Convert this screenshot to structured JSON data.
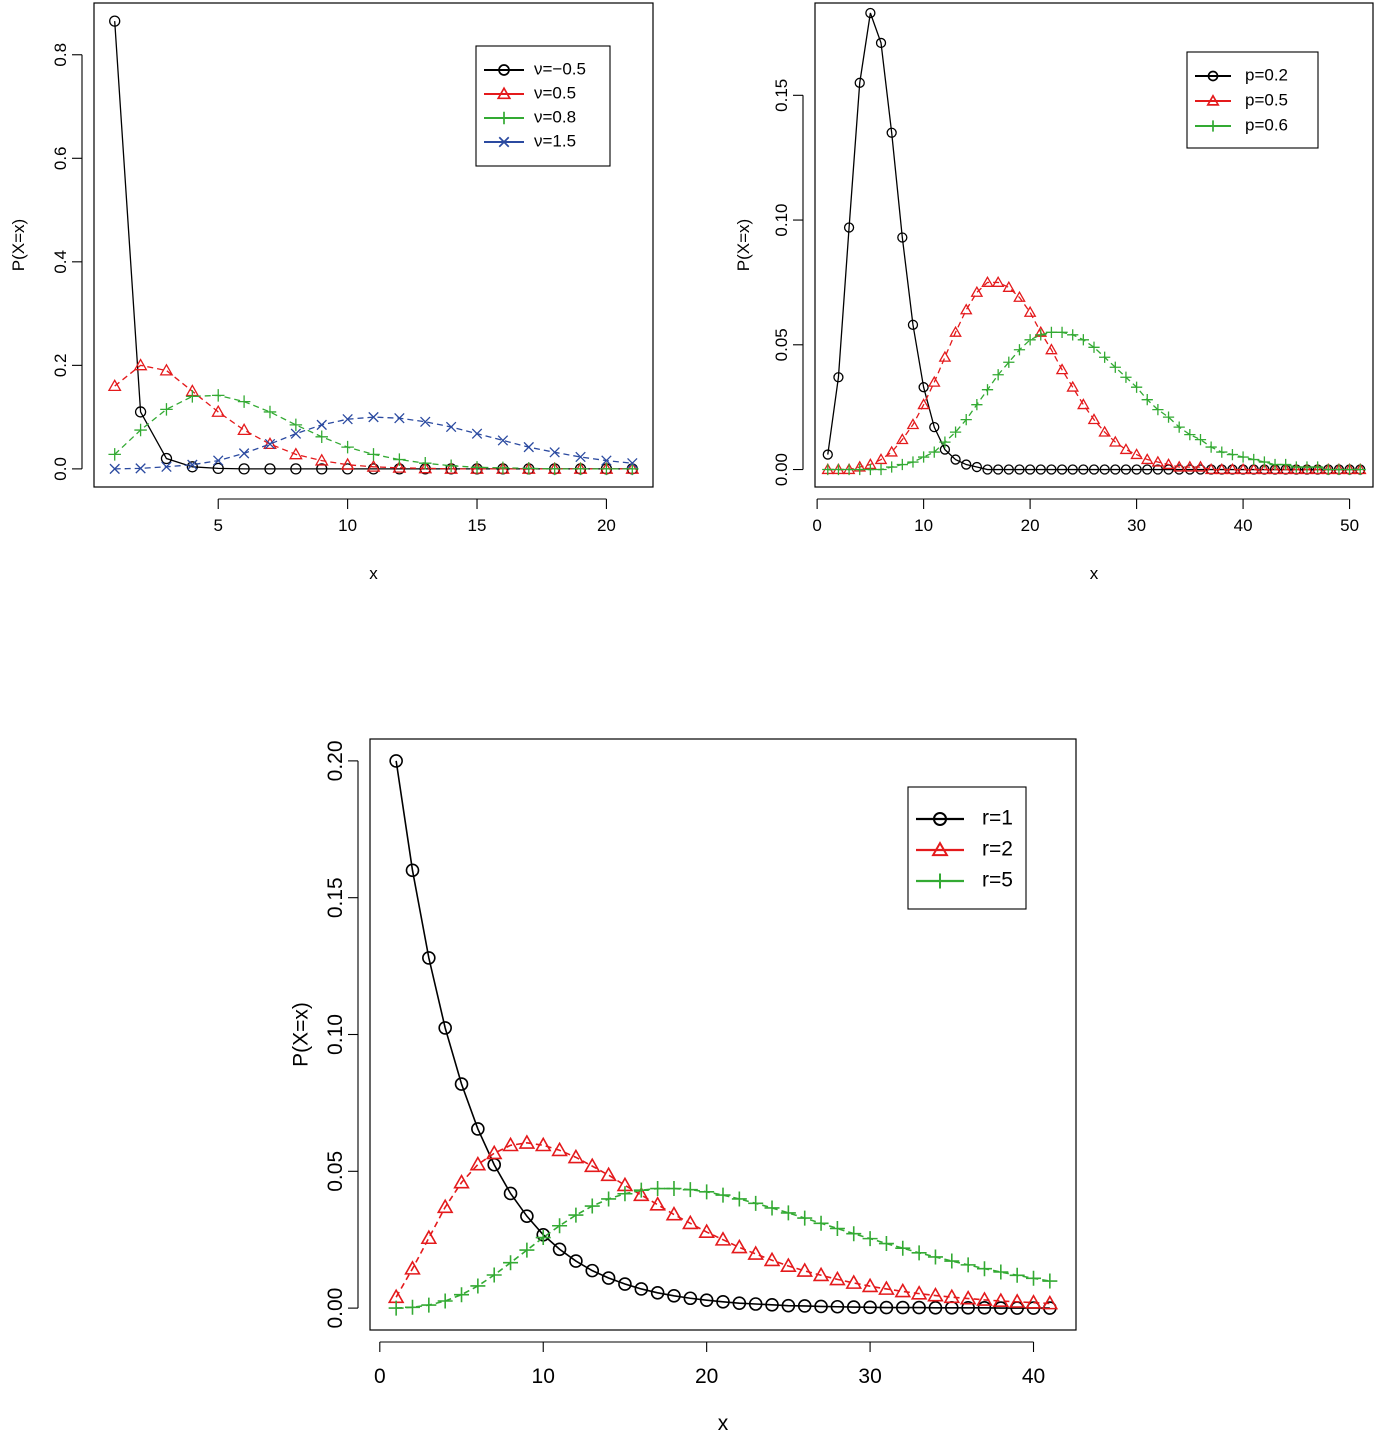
{
  "charts": [
    {
      "type": "line",
      "xlabel": "x",
      "ylabel": "P(X=x)",
      "xlim": [
        0.2,
        21.8
      ],
      "ylim": [
        -0.035,
        0.9
      ],
      "xticks": [
        "5",
        "10",
        "15",
        "20"
      ],
      "yticks": [
        "0.0",
        "0.2",
        "0.4",
        "0.6",
        "0.8"
      ],
      "legend_position": "top-right",
      "series": [
        {
          "name": "ν=−0.5",
          "color": "#000000",
          "marker": "circle",
          "line": "solid",
          "x": [
            1,
            2,
            3,
            4,
            5,
            6,
            7,
            8,
            9,
            10,
            11,
            12,
            13,
            14,
            15,
            16,
            17,
            18,
            19,
            20,
            21
          ],
          "y": [
            0.865,
            0.11,
            0.02,
            0.004,
            0.001,
            0,
            0,
            0,
            0,
            0,
            0,
            0,
            0,
            0,
            0,
            0,
            0,
            0,
            0,
            0,
            0
          ]
        },
        {
          "name": "ν=0.5",
          "color": "#e41a1c",
          "marker": "triangle",
          "line": "dashed",
          "x": [
            1,
            2,
            3,
            4,
            5,
            6,
            7,
            8,
            9,
            10,
            11,
            12,
            13,
            14,
            15,
            16,
            17,
            18,
            19,
            20,
            21
          ],
          "y": [
            0.16,
            0.2,
            0.19,
            0.15,
            0.11,
            0.075,
            0.048,
            0.028,
            0.016,
            0.008,
            0.004,
            0.002,
            0.001,
            0,
            0,
            0,
            0,
            0,
            0,
            0,
            0
          ]
        },
        {
          "name": "ν=0.8",
          "color": "#33aa33",
          "marker": "plus",
          "line": "dashed",
          "x": [
            1,
            2,
            3,
            4,
            5,
            6,
            7,
            8,
            9,
            10,
            11,
            12,
            13,
            14,
            15,
            16,
            17,
            18,
            19,
            20,
            21
          ],
          "y": [
            0.028,
            0.075,
            0.115,
            0.14,
            0.142,
            0.13,
            0.11,
            0.085,
            0.062,
            0.042,
            0.028,
            0.018,
            0.011,
            0.006,
            0.003,
            0.002,
            0.001,
            0,
            0,
            0,
            0
          ]
        },
        {
          "name": "ν=1.5",
          "color": "#2b4aa0",
          "marker": "cross",
          "line": "dashed",
          "x": [
            1,
            2,
            3,
            4,
            5,
            6,
            7,
            8,
            9,
            10,
            11,
            12,
            13,
            14,
            15,
            16,
            17,
            18,
            19,
            20,
            21
          ],
          "y": [
            0.0,
            0.001,
            0.004,
            0.008,
            0.016,
            0.03,
            0.048,
            0.068,
            0.085,
            0.096,
            0.1,
            0.098,
            0.091,
            0.081,
            0.068,
            0.055,
            0.042,
            0.032,
            0.023,
            0.016,
            0.011
          ]
        }
      ]
    },
    {
      "type": "line",
      "xlabel": "x",
      "ylabel": "P(X=x)",
      "xlim": [
        -0.2,
        52.2
      ],
      "ylim": [
        -0.007,
        0.187
      ],
      "xticks": [
        "0",
        "10",
        "20",
        "30",
        "40",
        "50"
      ],
      "yticks": [
        "0.00",
        "0.05",
        "0.10",
        "0.15"
      ],
      "legend_position": "top-right",
      "series": [
        {
          "name": "p=0.2",
          "color": "#000000",
          "marker": "circle",
          "line": "solid",
          "x": [
            1,
            2,
            3,
            4,
            5,
            6,
            7,
            8,
            9,
            10,
            11,
            12,
            13,
            14,
            15,
            16,
            17,
            18,
            19,
            20,
            21,
            22,
            23,
            24,
            25,
            26,
            27,
            28,
            29,
            30,
            31,
            32,
            33,
            34,
            35,
            36,
            37,
            38,
            39,
            40,
            41,
            42,
            43,
            44,
            45,
            46,
            47,
            48,
            49,
            50,
            51
          ],
          "y": [
            0.006,
            0.037,
            0.097,
            0.155,
            0.183,
            0.171,
            0.135,
            0.093,
            0.058,
            0.033,
            0.017,
            0.008,
            0.004,
            0.002,
            0.001,
            0,
            0,
            0,
            0,
            0,
            0,
            0,
            0,
            0,
            0,
            0,
            0,
            0,
            0,
            0,
            0,
            0,
            0,
            0,
            0,
            0,
            0,
            0,
            0,
            0,
            0,
            0,
            0,
            0,
            0,
            0,
            0,
            0,
            0,
            0,
            0
          ]
        },
        {
          "name": "p=0.5",
          "color": "#e41a1c",
          "marker": "triangle",
          "line": "dashed",
          "x": [
            1,
            2,
            3,
            4,
            5,
            6,
            7,
            8,
            9,
            10,
            11,
            12,
            13,
            14,
            15,
            16,
            17,
            18,
            19,
            20,
            21,
            22,
            23,
            24,
            25,
            26,
            27,
            28,
            29,
            30,
            31,
            32,
            33,
            34,
            35,
            36,
            37,
            38,
            39,
            40,
            41,
            42,
            43,
            44,
            45,
            46,
            47,
            48,
            49,
            50,
            51
          ],
          "y": [
            0,
            0,
            0,
            0.001,
            0.002,
            0.004,
            0.007,
            0.012,
            0.018,
            0.026,
            0.035,
            0.045,
            0.055,
            0.064,
            0.071,
            0.075,
            0.075,
            0.073,
            0.069,
            0.063,
            0.055,
            0.048,
            0.04,
            0.033,
            0.026,
            0.02,
            0.015,
            0.011,
            0.008,
            0.006,
            0.004,
            0.003,
            0.002,
            0.001,
            0.001,
            0.001,
            0,
            0,
            0,
            0,
            0,
            0,
            0,
            0,
            0,
            0,
            0,
            0,
            0,
            0,
            0
          ]
        },
        {
          "name": "p=0.6",
          "color": "#33aa33",
          "marker": "plus",
          "line": "dashed",
          "x": [
            1,
            2,
            3,
            4,
            5,
            6,
            7,
            8,
            9,
            10,
            11,
            12,
            13,
            14,
            15,
            16,
            17,
            18,
            19,
            20,
            21,
            22,
            23,
            24,
            25,
            26,
            27,
            28,
            29,
            30,
            31,
            32,
            33,
            34,
            35,
            36,
            37,
            38,
            39,
            40,
            41,
            42,
            43,
            44,
            45,
            46,
            47,
            48,
            49,
            50,
            51
          ],
          "y": [
            0,
            0,
            0,
            0,
            0,
            0,
            0.001,
            0.002,
            0.003,
            0.005,
            0.007,
            0.011,
            0.015,
            0.02,
            0.026,
            0.032,
            0.038,
            0.043,
            0.048,
            0.052,
            0.054,
            0.055,
            0.055,
            0.054,
            0.052,
            0.049,
            0.045,
            0.041,
            0.037,
            0.033,
            0.028,
            0.024,
            0.021,
            0.017,
            0.014,
            0.012,
            0.009,
            0.007,
            0.006,
            0.005,
            0.004,
            0.003,
            0.002,
            0.002,
            0.001,
            0.001,
            0.001,
            0,
            0,
            0,
            0
          ]
        }
      ]
    },
    {
      "type": "line",
      "xlabel": "x",
      "ylabel": "P(X=x)",
      "xlim": [
        -0.6,
        42.6
      ],
      "ylim": [
        -0.008,
        0.208
      ],
      "xticks": [
        "0",
        "10",
        "20",
        "30",
        "40"
      ],
      "yticks": [
        "0.00",
        "0.05",
        "0.10",
        "0.15",
        "0.20"
      ],
      "legend_position": "top-right",
      "series": [
        {
          "name": "r=1",
          "color": "#000000",
          "marker": "circle",
          "line": "solid",
          "x": [
            1,
            2,
            3,
            4,
            5,
            6,
            7,
            8,
            9,
            10,
            11,
            12,
            13,
            14,
            15,
            16,
            17,
            18,
            19,
            20,
            21,
            22,
            23,
            24,
            25,
            26,
            27,
            28,
            29,
            30,
            31,
            32,
            33,
            34,
            35,
            36,
            37,
            38,
            39,
            40,
            41
          ],
          "y": [
            0.2,
            0.16,
            0.128,
            0.1024,
            0.0819,
            0.0655,
            0.0524,
            0.0419,
            0.0336,
            0.0268,
            0.0215,
            0.0172,
            0.0137,
            0.011,
            0.0088,
            0.007,
            0.0056,
            0.0045,
            0.0036,
            0.0029,
            0.0023,
            0.0018,
            0.0015,
            0.0012,
            0.0009,
            0.0008,
            0.0006,
            0.0005,
            0.0004,
            0.0003,
            0.0002,
            0.0002,
            0.0002,
            0.0001,
            0.0001,
            0.0001,
            0.0001,
            0,
            0,
            0,
            0
          ]
        },
        {
          "name": "r=2",
          "color": "#e41a1c",
          "marker": "triangle",
          "line": "dashed",
          "x": [
            1,
            2,
            3,
            4,
            5,
            6,
            7,
            8,
            9,
            10,
            11,
            12,
            13,
            14,
            15,
            16,
            17,
            18,
            19,
            20,
            21,
            22,
            23,
            24,
            25,
            26,
            27,
            28,
            29,
            30,
            31,
            32,
            33,
            34,
            35,
            36,
            37,
            38,
            39,
            40,
            41
          ],
          "y": [
            0.004,
            0.0144,
            0.0256,
            0.0369,
            0.0459,
            0.0525,
            0.0566,
            0.0595,
            0.0604,
            0.0595,
            0.0577,
            0.0551,
            0.0519,
            0.0486,
            0.0449,
            0.0413,
            0.0378,
            0.0342,
            0.031,
            0.0278,
            0.025,
            0.0222,
            0.0198,
            0.0175,
            0.0154,
            0.0136,
            0.012,
            0.0105,
            0.0092,
            0.008,
            0.007,
            0.0061,
            0.0053,
            0.0046,
            0.004,
            0.0035,
            0.003,
            0.0026,
            0.0023,
            0.002,
            0.0017
          ]
        },
        {
          "name": "r=5",
          "color": "#33aa33",
          "marker": "plus",
          "line": "dashed",
          "x": [
            1,
            2,
            3,
            4,
            5,
            6,
            7,
            8,
            9,
            10,
            11,
            12,
            13,
            14,
            15,
            16,
            17,
            18,
            19,
            20,
            21,
            22,
            23,
            24,
            25,
            26,
            27,
            28,
            29,
            30,
            31,
            32,
            33,
            34,
            35,
            36,
            37,
            38,
            39,
            40,
            41
          ],
          "y": [
            0,
            0.0003,
            0.0011,
            0.0026,
            0.0049,
            0.0081,
            0.0121,
            0.0166,
            0.0212,
            0.0258,
            0.0301,
            0.034,
            0.0373,
            0.0399,
            0.0418,
            0.0431,
            0.0437,
            0.0437,
            0.0433,
            0.0425,
            0.0413,
            0.0399,
            0.0383,
            0.0366,
            0.0348,
            0.0329,
            0.031,
            0.0291,
            0.0272,
            0.0254,
            0.0236,
            0.0219,
            0.0202,
            0.0187,
            0.0172,
            0.0158,
            0.0144,
            0.0132,
            0.012,
            0.0109,
            0.0099
          ]
        }
      ]
    }
  ]
}
